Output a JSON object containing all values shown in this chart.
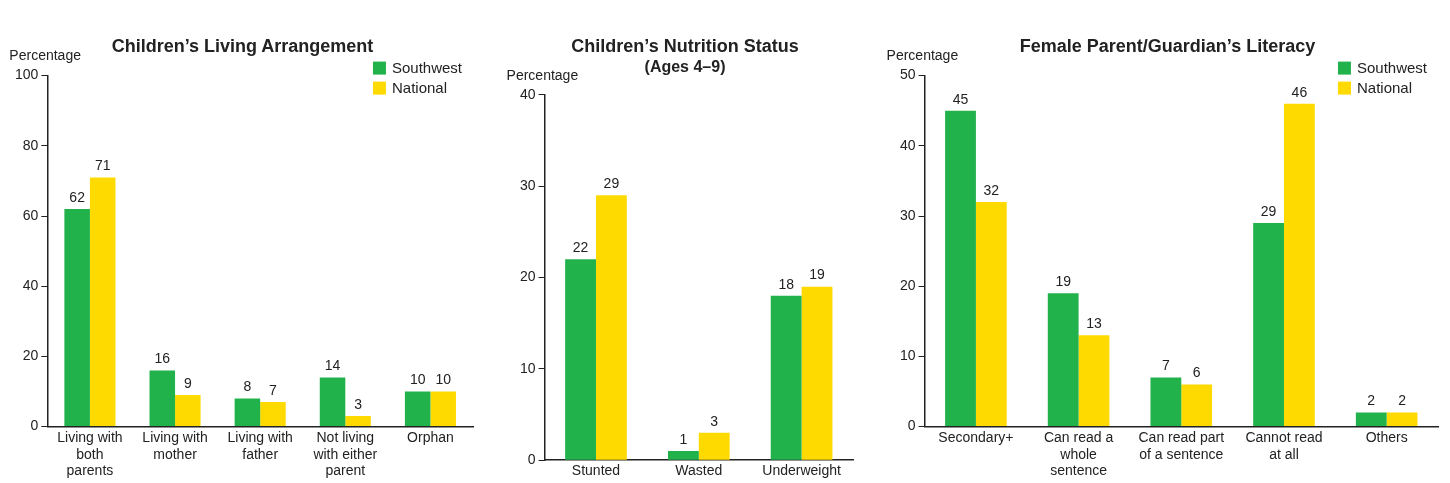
{
  "chart_data": [
    {
      "type": "bar",
      "title": "Children’s Living Arrangement",
      "ylabel": "Percentage",
      "categories": [
        "Living with both parents",
        "Living with mother",
        "Living with father",
        "Not living with either parent",
        "Orphan"
      ],
      "series": [
        {
          "name": "Southwest",
          "color": "#22b24c",
          "values": [
            62,
            16,
            8,
            14,
            10
          ]
        },
        {
          "name": "National",
          "color": "#ffda00",
          "values": [
            71,
            9,
            7,
            3,
            10
          ]
        }
      ],
      "ylim": [
        0,
        100
      ],
      "yticks": [
        0,
        20,
        40,
        60,
        80,
        100
      ],
      "grid": false,
      "legend": "top right",
      "data_labels": true
    },
    {
      "type": "bar",
      "title": "Children’s Nutrition Status",
      "subtitle": "(Ages 4–9)",
      "ylabel": "Percentage",
      "categories": [
        "Stunted",
        "Wasted",
        "Underweight"
      ],
      "series": [
        {
          "color": "#22b24c",
          "values": [
            22,
            1,
            18
          ]
        },
        {
          "color": "#ffda00",
          "values": [
            29,
            3,
            19
          ]
        }
      ],
      "ylim": [
        0,
        40
      ],
      "yticks": [
        0,
        10,
        20,
        30,
        40
      ],
      "grid": false,
      "data_labels": true
    },
    {
      "type": "bar",
      "title": "Female Parent/Guardian’s Literacy",
      "ylabel": "Percentage",
      "categories": [
        "Secondary+",
        "Can read a whole sentence",
        "Can read part of a sentence",
        "Cannot read at all",
        "Others"
      ],
      "series": [
        {
          "name": "Southwest",
          "color": "#22b24c",
          "values": [
            45,
            19,
            7,
            29,
            2
          ]
        },
        {
          "name": "National",
          "color": "#ffda00",
          "values": [
            32,
            13,
            6,
            46,
            2
          ]
        }
      ],
      "ylim": [
        0,
        50
      ],
      "yticks": [
        0,
        10,
        20,
        30,
        40,
        50
      ],
      "grid": false,
      "legend": "top right",
      "data_labels": true
    }
  ]
}
